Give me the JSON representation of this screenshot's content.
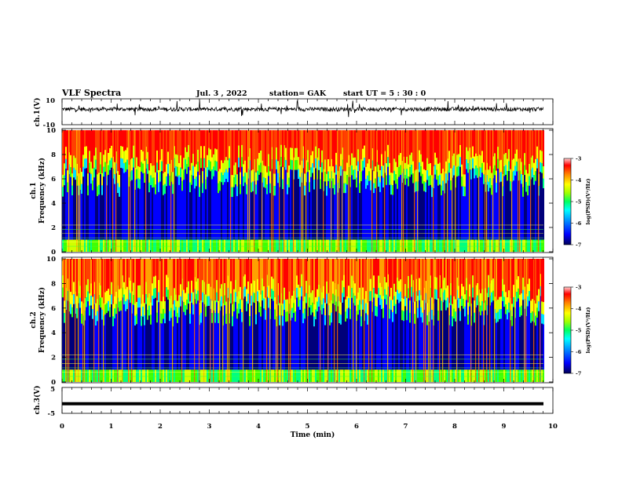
{
  "header": {
    "title": "VLF Spectra",
    "date": "Jul. 3 , 2022",
    "station": "station= GAK",
    "start": "start UT = 5 : 30 : 0"
  },
  "colors": {
    "spectrum": [
      "#00007a",
      "#0000ff",
      "#0088ff",
      "#00e0ff",
      "#00ff80",
      "#40ff00",
      "#d0ff00",
      "#ffff00",
      "#ffa000",
      "#ff4000",
      "#ff0000"
    ]
  },
  "chart_data": [
    {
      "panel": "ch1-waveform",
      "type": "line",
      "ylabel": "ch.1(V)",
      "ylim": [
        -10,
        10
      ],
      "yticklabels": [
        "10",
        "-10"
      ],
      "xlim": [
        0,
        10
      ],
      "level": 2,
      "spread": 3
    },
    {
      "panel": "ch1-spectrogram",
      "type": "heatmap",
      "ylabel": "ch.1\nFrequency (kHz)",
      "ylim": [
        0,
        10
      ],
      "yticklabels": [
        "0",
        "2",
        "4",
        "6",
        "8",
        "10"
      ],
      "xlim": [
        0,
        10
      ],
      "colorbar": {
        "label": "log(PSD)(V²/Hz)",
        "range": [
          -7,
          -3
        ],
        "ticklabels": [
          "-3",
          "-4",
          "-5",
          "-6",
          "-7"
        ]
      }
    },
    {
      "panel": "ch2-spectrogram",
      "type": "heatmap",
      "ylabel": "ch.2\nFrequency (kHz)",
      "ylim": [
        0,
        10
      ],
      "yticklabels": [
        "0",
        "2",
        "4",
        "6",
        "8",
        "10"
      ],
      "xlim": [
        0,
        10
      ],
      "colorbar": {
        "label": "log(PSD)(V²/Hz)",
        "range": [
          -7,
          -3
        ],
        "ticklabels": [
          "-3",
          "-4",
          "-5",
          "-6",
          "-7"
        ]
      }
    },
    {
      "panel": "ch3-waveform",
      "type": "line",
      "ylabel": "ch.3(V)",
      "ylim": [
        -5,
        5
      ],
      "yticklabels": [
        "5",
        "-5"
      ],
      "xlim": [
        0,
        10
      ],
      "level": -1.3
    }
  ],
  "xaxis": {
    "label": "Time (min)",
    "ticklabels": [
      "0",
      "1",
      "2",
      "3",
      "4",
      "5",
      "6",
      "7",
      "8",
      "9",
      "10"
    ]
  }
}
